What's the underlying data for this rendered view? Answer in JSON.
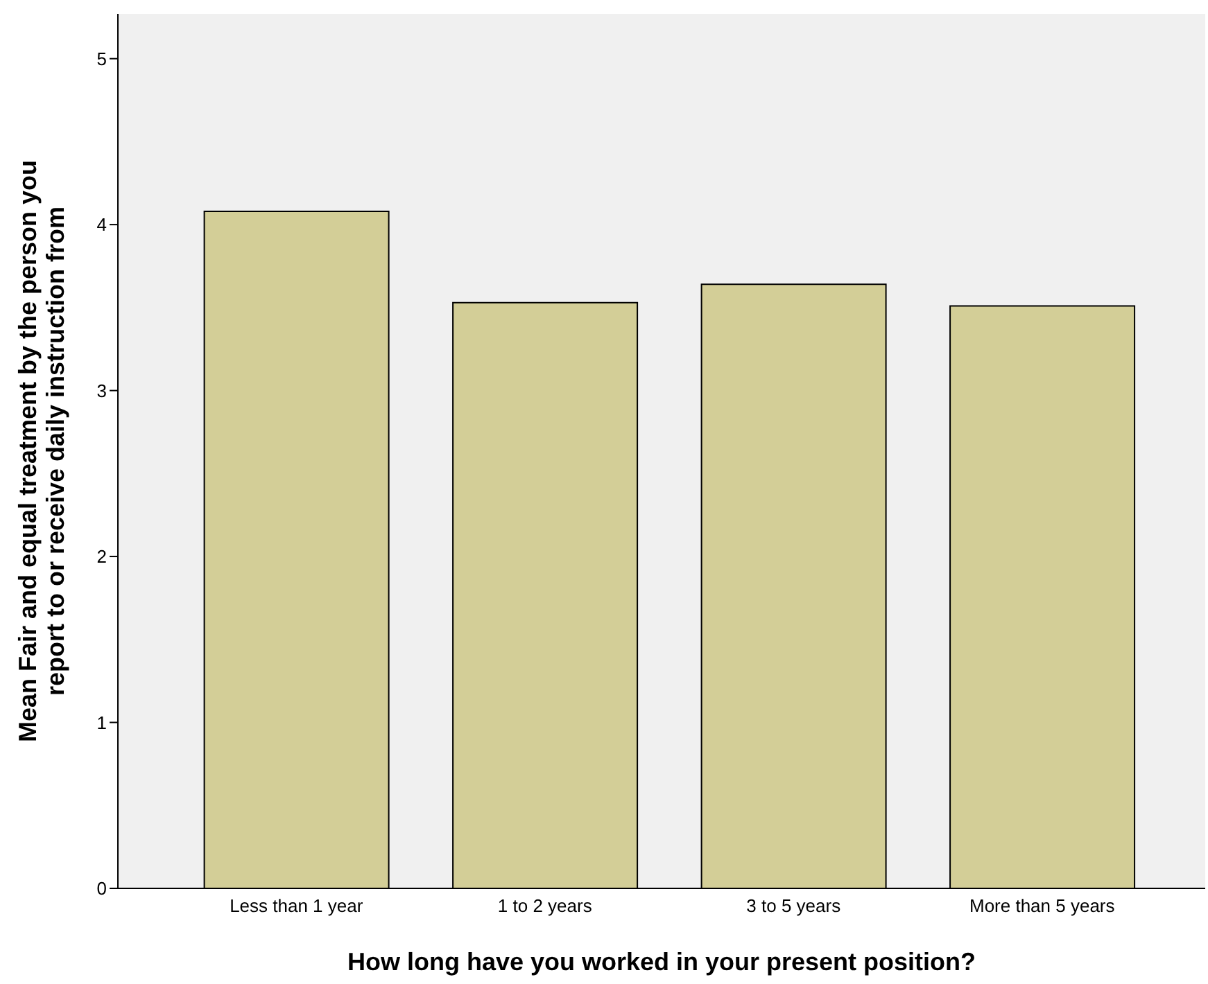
{
  "chart_data": {
    "type": "bar",
    "xlabel": "How long have you worked in your present position?",
    "ylabel": "Mean Fair and equal treatment by the person you report to or receive daily instruction from",
    "categories": [
      "Less than 1 year",
      "1 to 2 years",
      "3 to 5 years",
      "More than 5 years"
    ],
    "values": [
      4.08,
      3.53,
      3.64,
      3.51
    ],
    "color": "#d3ce97",
    "ylim": [
      0,
      5.27
    ],
    "yticks": [
      0,
      1,
      2,
      3,
      4,
      5
    ],
    "grid": false
  }
}
